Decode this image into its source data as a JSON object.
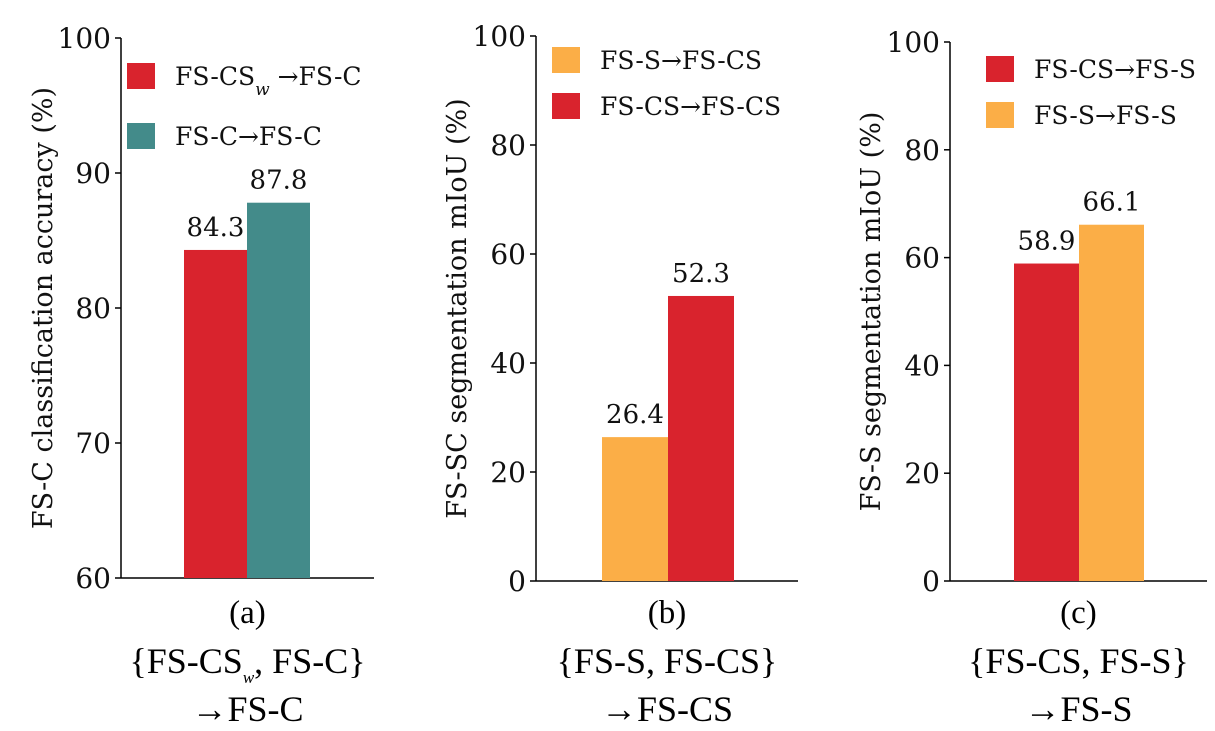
{
  "colors": {
    "red": "#d9232d",
    "teal": "#438b8a",
    "orange": "#fbae47"
  },
  "chart_data": [
    {
      "type": "bar",
      "ylabel": "FS-C classification accuracy (%)",
      "ylim": [
        60,
        100
      ],
      "yticks": [
        60,
        70,
        80,
        90,
        100
      ],
      "caption": {
        "letter": "(a)",
        "line1": "{FS-CSw, FS-C}",
        "line2": "→FS-C"
      },
      "legend_position": "top-right",
      "series": [
        {
          "name": "FS-CSw →FS-C",
          "value": 84.3,
          "label": "84.3",
          "color": "#d9232d"
        },
        {
          "name": "FS-C→FS-C",
          "value": 87.8,
          "label": "87.8",
          "color": "#438b8a"
        }
      ]
    },
    {
      "type": "bar",
      "ylabel": "FS-SC segmentation mIoU (%)",
      "ylim": [
        0,
        100
      ],
      "yticks": [
        0,
        20,
        40,
        60,
        80,
        100
      ],
      "caption": {
        "letter": "(b)",
        "line1": "{FS-S, FS-CS}",
        "line2": "→FS-CS"
      },
      "legend_position": "top-right",
      "series": [
        {
          "name": "FS-S→FS-CS",
          "value": 26.4,
          "label": "26.4",
          "color": "#fbae47"
        },
        {
          "name": "FS-CS→FS-CS",
          "value": 52.3,
          "label": "52.3",
          "color": "#d9232d"
        }
      ]
    },
    {
      "type": "bar",
      "ylabel": "FS-S segmentation mIoU (%)",
      "ylim": [
        0,
        100
      ],
      "yticks": [
        0,
        20,
        40,
        60,
        80,
        100
      ],
      "caption": {
        "letter": "(c)",
        "line1": "{FS-CS, FS-S}",
        "line2": "→FS-S"
      },
      "legend_position": "top-right",
      "series": [
        {
          "name": "FS-CS→FS-S",
          "value": 58.9,
          "label": "58.9",
          "color": "#d9232d"
        },
        {
          "name": "FS-S→FS-S",
          "value": 66.1,
          "label": "66.1",
          "color": "#fbae47"
        }
      ]
    }
  ]
}
